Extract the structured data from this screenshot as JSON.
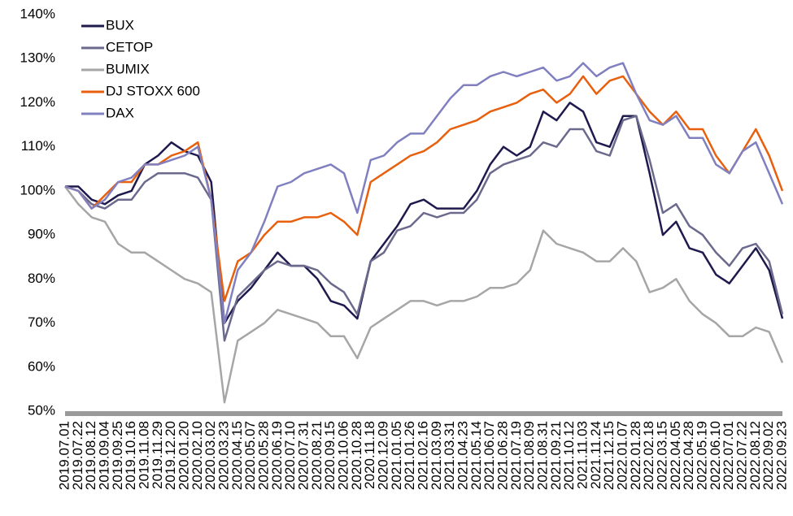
{
  "chart_data": {
    "type": "line",
    "categories": [
      "2019.07.01",
      "2019.07.22",
      "2019.08.12",
      "2019.09.04",
      "2019.09.25",
      "2019.10.16",
      "2019.11.08",
      "2019.11.29",
      "2019.12.20",
      "2020.01.20",
      "2020.02.10",
      "2020.03.02",
      "2020.03.23",
      "2020.04.15",
      "2020.05.07",
      "2020.05.28",
      "2020.06.19",
      "2020.07.10",
      "2020.07.31",
      "2020.08.21",
      "2020.09.15",
      "2020.10.06",
      "2020.10.28",
      "2020.11.18",
      "2020.12.09",
      "2021.01.05",
      "2021.01.26",
      "2021.02.16",
      "2021.03.09",
      "2021.03.31",
      "2021.04.23",
      "2021.05.14",
      "2021.06.07",
      "2021.06.28",
      "2021.07.19",
      "2021.08.09",
      "2021.08.31",
      "2021.09.21",
      "2021.10.12",
      "2021.11.03",
      "2021.11.24",
      "2021.12.15",
      "2022.01.07",
      "2022.01.28",
      "2022.02.18",
      "2022.03.15",
      "2022.04.05",
      "2022.04.28",
      "2022.05.19",
      "2022.06.10",
      "2022.07.01",
      "2022.07.22",
      "2022.08.12",
      "2022.09.02",
      "2022.09.23"
    ],
    "series": [
      {
        "name": "BUX",
        "color": "#1f1a4d",
        "values": [
          101,
          101,
          98,
          97,
          99,
          100,
          106,
          108,
          111,
          109,
          108,
          102,
          70,
          75,
          78,
          82,
          86,
          83,
          83,
          80,
          75,
          74,
          71,
          84,
          88,
          92,
          97,
          98,
          96,
          96,
          96,
          100,
          106,
          110,
          108,
          110,
          118,
          116,
          120,
          118,
          111,
          110,
          117,
          117,
          104,
          90,
          93,
          87,
          86,
          81,
          79,
          83,
          87,
          82,
          71
        ]
      },
      {
        "name": "CETOP",
        "color": "#6b6a8c",
        "values": [
          101,
          100,
          97,
          96,
          98,
          98,
          102,
          104,
          104,
          104,
          103,
          98,
          66,
          76,
          79,
          82,
          84,
          83,
          83,
          82,
          79,
          77,
          72,
          84,
          86,
          91,
          92,
          95,
          94,
          95,
          95,
          98,
          104,
          106,
          107,
          108,
          111,
          110,
          114,
          114,
          109,
          108,
          116,
          117,
          107,
          95,
          97,
          92,
          90,
          86,
          83,
          87,
          88,
          84,
          72
        ]
      },
      {
        "name": "BUMIX",
        "color": "#a6a6a6",
        "values": [
          101,
          97,
          94,
          93,
          88,
          86,
          86,
          84,
          82,
          80,
          79,
          77,
          52,
          66,
          68,
          70,
          73,
          72,
          71,
          70,
          67,
          67,
          62,
          69,
          71,
          73,
          75,
          75,
          74,
          75,
          75,
          76,
          78,
          78,
          79,
          82,
          91,
          88,
          87,
          86,
          84,
          84,
          87,
          84,
          77,
          78,
          80,
          75,
          72,
          70,
          67,
          67,
          69,
          68,
          61
        ]
      },
      {
        "name": "DJ STOXX 600",
        "color": "#e8600e",
        "values": [
          101,
          100,
          96,
          99,
          102,
          102,
          106,
          106,
          108,
          109,
          111,
          98,
          75,
          84,
          86,
          90,
          93,
          93,
          94,
          94,
          95,
          93,
          90,
          102,
          104,
          106,
          108,
          109,
          111,
          114,
          115,
          116,
          118,
          119,
          120,
          122,
          123,
          120,
          122,
          126,
          122,
          125,
          126,
          122,
          118,
          115,
          118,
          114,
          114,
          108,
          104,
          109,
          114,
          108,
          100
        ]
      },
      {
        "name": "DAX",
        "color": "#8080c0",
        "values": [
          101,
          100,
          96,
          98,
          102,
          103,
          106,
          106,
          107,
          108,
          110,
          98,
          70,
          82,
          86,
          93,
          101,
          102,
          104,
          105,
          106,
          104,
          95,
          107,
          108,
          111,
          113,
          113,
          117,
          121,
          124,
          124,
          126,
          127,
          126,
          127,
          128,
          125,
          126,
          129,
          126,
          128,
          129,
          122,
          116,
          115,
          117,
          112,
          112,
          106,
          104,
          109,
          111,
          104,
          97
        ]
      }
    ],
    "ylim": [
      50,
      140
    ],
    "yticks": [
      {
        "value": 50,
        "label": "50%"
      },
      {
        "value": 60,
        "label": "60%"
      },
      {
        "value": 70,
        "label": "70%"
      },
      {
        "value": 80,
        "label": "80%"
      },
      {
        "value": 90,
        "label": "90%"
      },
      {
        "value": 100,
        "label": "100%"
      },
      {
        "value": 110,
        "label": "110%"
      },
      {
        "value": 120,
        "label": "120%"
      },
      {
        "value": 130,
        "label": "130%"
      },
      {
        "value": 140,
        "label": "140%"
      }
    ],
    "grid": false,
    "legend": "upper left"
  }
}
